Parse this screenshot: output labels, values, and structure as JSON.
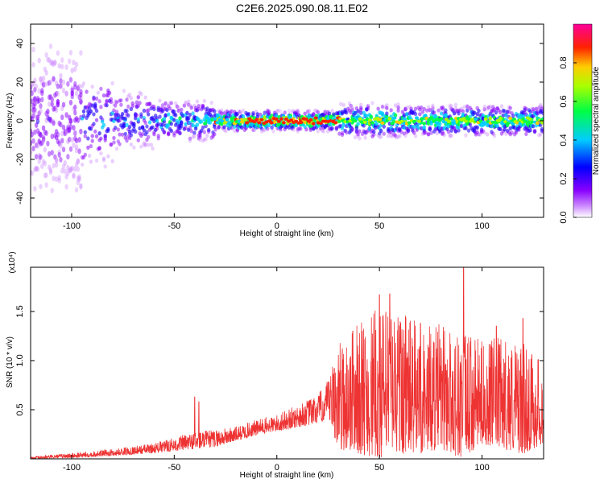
{
  "title": "C2E6.2025.090.08.11.E02",
  "colors": {
    "snr_line": "#ee3333"
  },
  "chart_data": [
    {
      "type": "heatmap",
      "xlabel": "Height of straight line (km)",
      "ylabel": "Frequency (Hz)",
      "xlim": [
        -120,
        130
      ],
      "ylim": [
        -50,
        50
      ],
      "x_ticks": [
        -100,
        -50,
        0,
        50,
        100
      ],
      "y_ticks": [
        -40,
        -20,
        0,
        20,
        40
      ],
      "colorbar": {
        "label": "Normalized spectral amplitude",
        "range": [
          0,
          1
        ],
        "ticks": [
          "0.0",
          "0.2",
          "0.4",
          "0.6",
          "0.8"
        ],
        "colormap": [
          "#ffffff",
          "#8800ff",
          "#0000ff",
          "#00ccff",
          "#00ff44",
          "#aaff00",
          "#ffcc00",
          "#ff0000",
          "#ff00aa"
        ]
      },
      "band_description": "energy concentrated near 0 Hz; wide scatter below -80 km, narrowing to a strong ridge near 0 Hz between -30 and 30 km"
    },
    {
      "type": "line",
      "xlabel": "Height of straight line (km)",
      "ylabel": "SNR (10 * v/v)",
      "y_multiplier": "(x10⁴)",
      "xlim": [
        -120,
        130
      ],
      "ylim": [
        0,
        1.95
      ],
      "x_ticks": [
        -100,
        -50,
        0,
        50,
        100
      ],
      "y_ticks": [
        "0.5",
        "1.0",
        "1.5"
      ],
      "series": [
        {
          "envelope_km": [
            -120,
            -100,
            -80,
            -60,
            -50,
            -40,
            -30,
            -20,
            -10,
            0,
            10,
            20,
            25,
            30,
            40,
            50,
            60,
            70,
            80,
            90,
            100,
            110,
            120,
            130
          ],
          "envelope_low": [
            0.0,
            0.01,
            0.03,
            0.06,
            0.08,
            0.1,
            0.12,
            0.18,
            0.24,
            0.28,
            0.32,
            0.36,
            0.4,
            0.1,
            0.05,
            0.0,
            0.05,
            0.05,
            0.1,
            0.0,
            0.15,
            0.1,
            0.05,
            0.15
          ],
          "envelope_high": [
            0.02,
            0.06,
            0.1,
            0.16,
            0.22,
            0.28,
            0.3,
            0.33,
            0.4,
            0.45,
            0.55,
            0.66,
            0.8,
            1.2,
            1.4,
            1.55,
            1.6,
            1.35,
            1.4,
            1.3,
            1.2,
            1.25,
            1.2,
            1.0
          ],
          "peaks": [
            [
              -40,
              0.63
            ],
            [
              -38,
              0.58
            ],
            [
              28,
              0.92
            ],
            [
              37,
              1.3
            ],
            [
              50,
              1.67
            ],
            [
              55,
              1.68
            ],
            [
              70,
              1.38
            ],
            [
              91,
              2.0
            ],
            [
              107,
              1.35
            ],
            [
              120,
              1.43
            ]
          ]
        }
      ]
    }
  ]
}
